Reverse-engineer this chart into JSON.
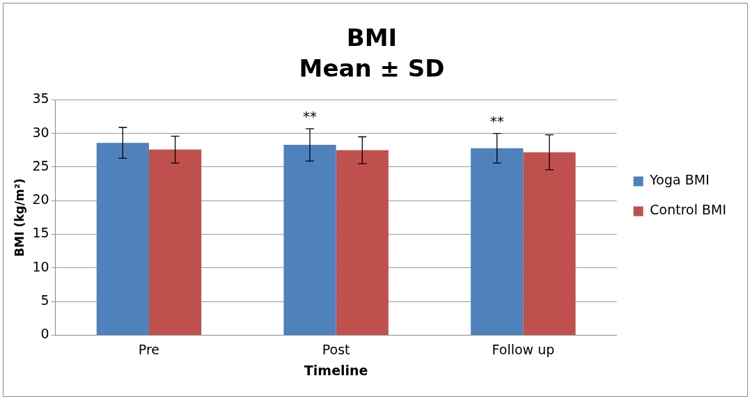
{
  "chart_data": {
    "type": "bar",
    "title": "BMI\nMean ± SD",
    "xlabel": "Timeline",
    "ylabel": "BMI (kg/m²)",
    "categories": [
      "Pre",
      "Post",
      "Follow up"
    ],
    "series": [
      {
        "name": "Yoga BMI",
        "color": "#4f81bd",
        "values": [
          28.6,
          28.3,
          27.8
        ],
        "errors": [
          2.3,
          2.4,
          2.2
        ]
      },
      {
        "name": "Control BMI",
        "color": "#c0504d",
        "values": [
          27.6,
          27.5,
          27.2
        ],
        "errors": [
          2.0,
          2.0,
          2.6
        ]
      }
    ],
    "annotations": [
      {
        "text": "**",
        "x": "Post",
        "y": 28.3
      },
      {
        "text": "**",
        "x": "Follow up",
        "y": 27.8
      }
    ],
    "ylim": [
      0,
      35
    ],
    "yticks": [
      0,
      5,
      10,
      15,
      20,
      25,
      30,
      35
    ],
    "grid": "y",
    "legend": "right"
  }
}
